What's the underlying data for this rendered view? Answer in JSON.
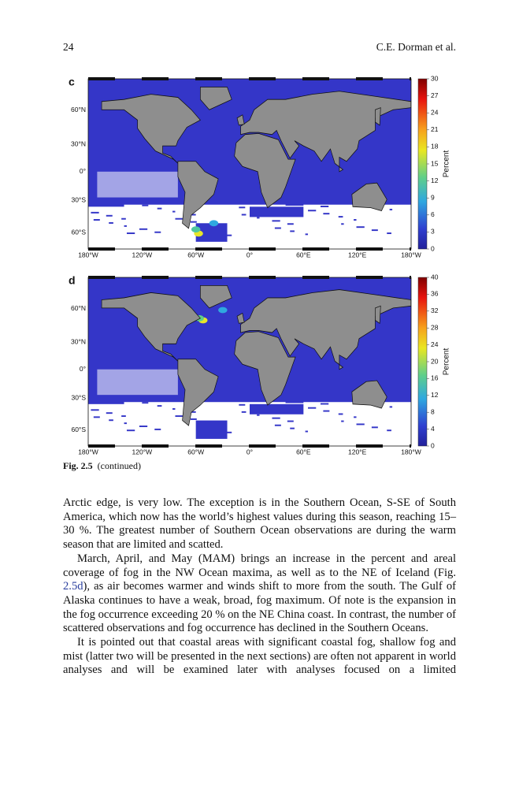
{
  "header": {
    "page_number": "24",
    "authors": "C.E. Dorman et al."
  },
  "figures": [
    {
      "panel": "c",
      "lat_labels": [
        "60°N",
        "30°N",
        "0°",
        "30°S",
        "60°S"
      ],
      "lon_labels": [
        "180°W",
        "120°W",
        "60°W",
        "0°",
        "60°E",
        "120°E",
        "180°W"
      ],
      "colorbar": {
        "ticks": [
          30,
          27,
          24,
          21,
          18,
          15,
          12,
          9,
          6,
          3,
          0
        ],
        "label": "Percent"
      }
    },
    {
      "panel": "d",
      "lat_labels": [
        "60°N",
        "30°N",
        "0°",
        "30°S",
        "60°S"
      ],
      "lon_labels": [
        "180°W",
        "120°W",
        "60°W",
        "0°",
        "60°E",
        "120°E",
        "180°W"
      ],
      "colorbar": {
        "ticks": [
          40,
          36,
          32,
          28,
          24,
          20,
          16,
          12,
          8,
          4,
          0
        ],
        "label": "Percent"
      }
    }
  ],
  "caption": {
    "label": "Fig. 2.5",
    "text": "(continued)"
  },
  "paragraphs": [
    [
      "Arctic edge, is very low. The exception is in the Southern Ocean, S-SE of South America, which now has the world’s highest values during this season, reaching 15–30 %. The greatest number of Southern Ocean observations are during the warm season that are limited and scatted."
    ],
    [
      "March, April, and May (MAM) brings an increase in the percent and areal coverage of fog in the NW Ocean maxima, as well as to the NE of Iceland (Fig. ",
      "2.5d",
      "), as air becomes warmer and winds shift to more from the south. The Gulf of Alaska continues to have a weak, broad, fog maximum. Of note is the expansion in the fog occurrence exceeding 20 % on the NE China coast. In contrast, the number of scattered observations and fog occurrence has declined in the Southern Oceans."
    ],
    [
      "It is pointed out that coastal areas with significant coastal fog, shallow fog and mist (latter two will be presented in the next sections) are often not apparent in world analyses and will be examined later with analyses focused on a limited"
    ]
  ]
}
